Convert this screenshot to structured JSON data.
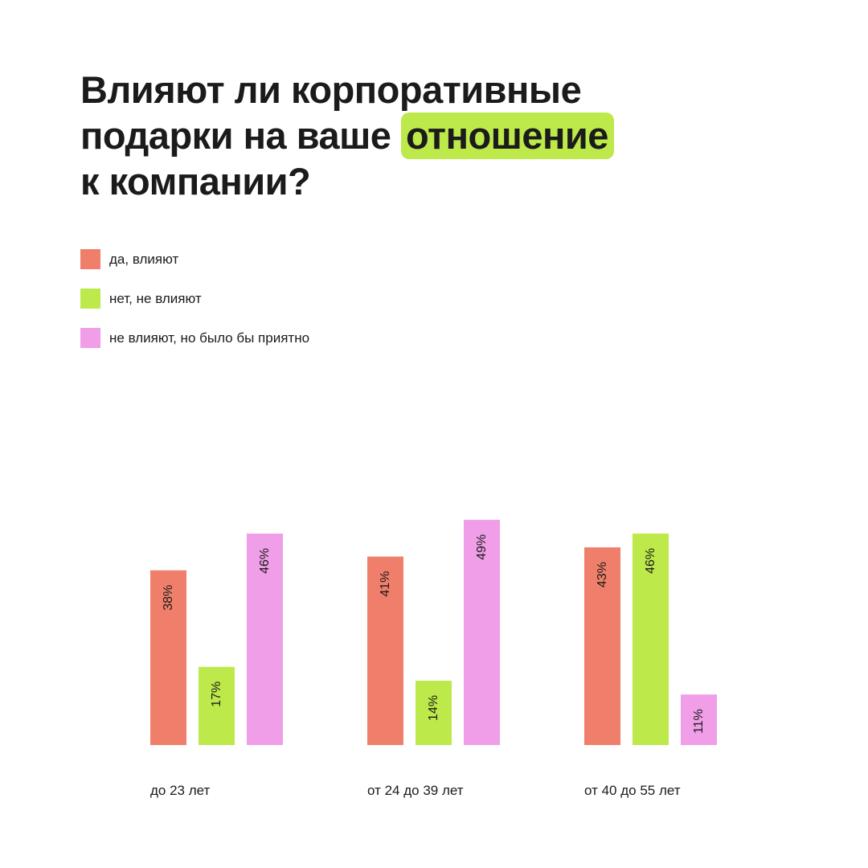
{
  "title": {
    "line1": "Влияют ли корпоративные",
    "line2_before": "подарки на ваше ",
    "line2_highlight": "отношение",
    "line3": "к компании?"
  },
  "colors": {
    "yes": "#ef7f6b",
    "no": "#bde94a",
    "nice": "#f09ee8",
    "highlight": "#bde94a",
    "text": "#1b1b1b"
  },
  "legend": [
    {
      "label": "да, влияют",
      "color": "#ef7f6b"
    },
    {
      "label": "нет, не влияют",
      "color": "#bde94a"
    },
    {
      "label": "не влияют, но было бы приятно",
      "color": "#f09ee8"
    }
  ],
  "chart_data": {
    "type": "bar",
    "title": "Влияют ли корпоративные подарки на ваше отношение к компании?",
    "categories": [
      "до 23 лет",
      "от 24 до 39 лет",
      "от 40 до 55 лет"
    ],
    "series": [
      {
        "name": "да, влияют",
        "values": [
          38,
          41,
          43
        ],
        "labels": [
          "38%",
          "41%",
          "43%"
        ],
        "color": "#ef7f6b"
      },
      {
        "name": "нет, не влияют",
        "values": [
          17,
          14,
          46
        ],
        "labels": [
          "17%",
          "14%",
          "46%"
        ],
        "color": "#bde94a"
      },
      {
        "name": "не влияют, но было бы приятно",
        "values": [
          46,
          49,
          11
        ],
        "labels": [
          "46%",
          "49%",
          "11%"
        ],
        "color": "#f09ee8"
      }
    ],
    "unit": "%",
    "xlabel": "",
    "ylabel": "",
    "ylim": [
      0,
      49
    ],
    "grid": false,
    "legend_position": "top-left",
    "data_labels": "rotated inside bars"
  }
}
